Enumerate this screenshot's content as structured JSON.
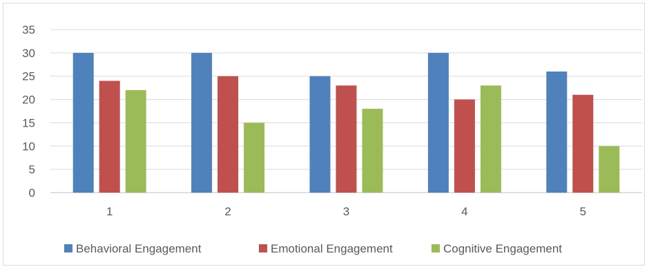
{
  "chart_data": {
    "type": "bar",
    "title": "",
    "xlabel": "",
    "ylabel": "",
    "categories": [
      "1",
      "2",
      "3",
      "4",
      "5"
    ],
    "series": [
      {
        "name": "Behavioral Engagement",
        "color": "#4f81bd",
        "values": [
          30,
          30,
          25,
          30,
          26
        ]
      },
      {
        "name": "Emotional Engagement",
        "color": "#c0504d",
        "values": [
          24,
          25,
          23,
          20,
          21
        ]
      },
      {
        "name": "Cognitive Engagement",
        "color": "#9bbb59",
        "values": [
          22,
          15,
          18,
          23,
          10
        ]
      }
    ],
    "ylim": [
      0,
      35
    ],
    "yticks": [
      "0",
      "5",
      "10",
      "15",
      "20",
      "25",
      "30",
      "35"
    ],
    "grid": true,
    "legend_position": "bottom"
  }
}
